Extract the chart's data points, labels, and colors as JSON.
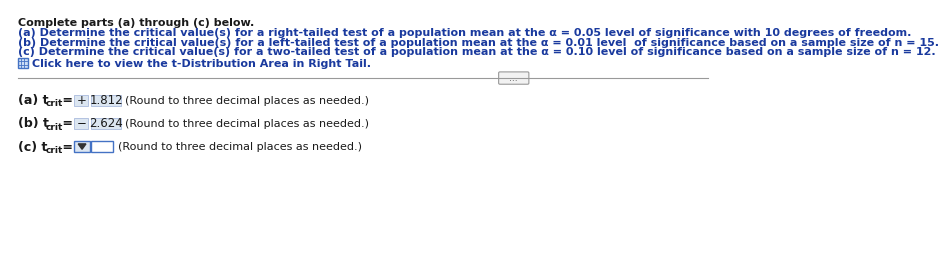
{
  "title_line": "Complete parts (a) through (c) below.",
  "line_a": "(a) Determine the critical value(s) for a right-tailed test of a population mean at the α = 0.05 level of significance with 10 degrees of freedom.",
  "line_b": "(b) Determine the critical value(s) for a left-tailed test of a population mean at the α = 0.01 level  of significance based on a sample size of n = 15.",
  "line_c": "(c) Determine the critical value(s) for a two-tailed test of a population mean at the α = 0.10 level of significance based on a sample size of n = 12.",
  "link_text": "Click here to view the t-Distribution Area in Right Tail.",
  "answer_a_sign": "+",
  "answer_a_value": "1.812",
  "answer_a_hint": "(Round to three decimal places as needed.)",
  "answer_b_sign": "−",
  "answer_b_value": "2.624",
  "answer_b_hint": "(Round to three decimal places as needed.)",
  "answer_c_hint": "(Round to three decimal places as needed.)",
  "text_color_blue": "#1a3a9e",
  "text_color_black": "#1a1a1a",
  "text_color_dark_blue": "#1a3a9e",
  "bg_color": "#ffffff",
  "box_fill_light": "#dce6f1",
  "box_border_blue": "#4472c4",
  "divider_color": "#999999",
  "btn_fill": "#f2f2f2",
  "btn_border": "#999999"
}
